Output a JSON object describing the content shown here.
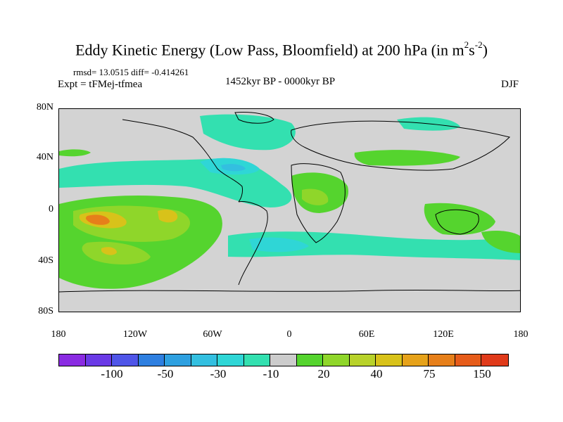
{
  "title": {
    "text": "Eddy Kinetic Energy (Low Pass, Bloomfield) at 200 hPa (in m",
    "sup1": "2",
    "mid": "s",
    "sup2": "-2",
    "end": ")"
  },
  "stats": "rmsd= 13.0515 diff= -0.414261",
  "expt": "Expt = tFMej-tfmea",
  "period": "1452kyr BP - 0000kyr BP",
  "season": "DJF",
  "map": {
    "ocean_color": "#d3d3d3",
    "lat_ticks": [
      "80N",
      "40N",
      "0",
      "40S",
      "80S"
    ],
    "lon_ticks": [
      "180",
      "120W",
      "60W",
      "0",
      "60E",
      "120E",
      "180"
    ]
  },
  "colorbar": {
    "colors": [
      "#8a2be2",
      "#6a3ae6",
      "#4f55e8",
      "#2e7fe0",
      "#2ea0e0",
      "#33bfe0",
      "#2fd6d6",
      "#33e0b0",
      "#cccccc",
      "#55d42e",
      "#8fd62a",
      "#b8d22a",
      "#d8c21a",
      "#e6a21a",
      "#e67f1a",
      "#e65c1a",
      "#e03a1a"
    ],
    "labels": [
      "-100",
      "-50",
      "-30",
      "-10",
      "20",
      "40",
      "75",
      "150"
    ]
  }
}
